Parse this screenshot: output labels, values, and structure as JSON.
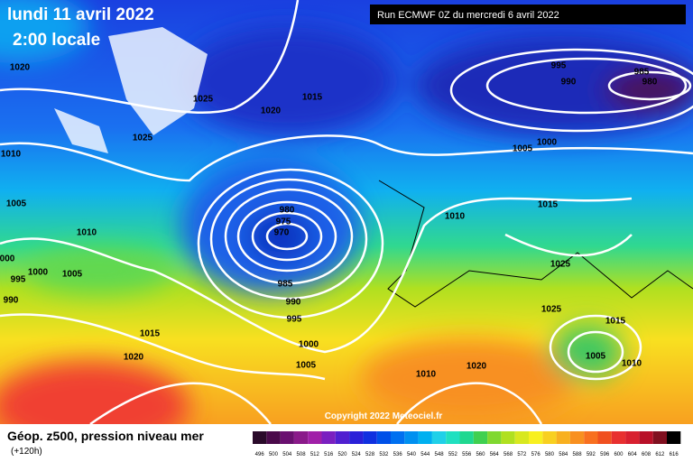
{
  "header": {
    "date": "lundi 11 avril 2022",
    "time": "2:00 locale",
    "run": "Run ECMWF 0Z du mercredi 6 avril 2022"
  },
  "isobar_labels": [
    "1020",
    "1025",
    "1025",
    "1020",
    "1015",
    "995",
    "985",
    "980",
    "990",
    "1005",
    "1000",
    "1010",
    "1005",
    "1010",
    "980",
    "975",
    "970",
    "1015",
    "1010",
    "1025",
    "1025",
    "985",
    "990",
    "995",
    "000",
    "995",
    "1000",
    "1005",
    "990",
    "1015",
    "1020",
    "1000",
    "1005",
    "1015",
    "1005",
    "1010",
    "1010",
    "1020"
  ],
  "copyright": "Copyright 2022 Meteociel.fr",
  "footer": {
    "title": "Géop. z500, pression niveau mer",
    "lead": "(+120h)"
  },
  "scale": {
    "labels": [
      "496",
      "500",
      "504",
      "508",
      "512",
      "516",
      "520",
      "524",
      "528",
      "532",
      "536",
      "540",
      "544",
      "548",
      "552",
      "556",
      "560",
      "564",
      "568",
      "572",
      "576",
      "580",
      "584",
      "588",
      "592",
      "596",
      "600",
      "604",
      "608",
      "612",
      "616"
    ],
    "colors": [
      "#2a0a2a",
      "#4a0a4a",
      "#6a1070",
      "#8a1a8a",
      "#a020a8",
      "#7a20c0",
      "#5020d0",
      "#2a20d8",
      "#1030e0",
      "#0050e8",
      "#0070f0",
      "#0090f0",
      "#00b0f0",
      "#20d0e8",
      "#20e0c0",
      "#20d890",
      "#40d050",
      "#80d830",
      "#b0e020",
      "#d8e820",
      "#f8f020",
      "#f8d020",
      "#f8b020",
      "#f89020",
      "#f87020",
      "#f05020",
      "#e83030",
      "#d82030",
      "#b81028",
      "#801020",
      "#000000"
    ]
  }
}
